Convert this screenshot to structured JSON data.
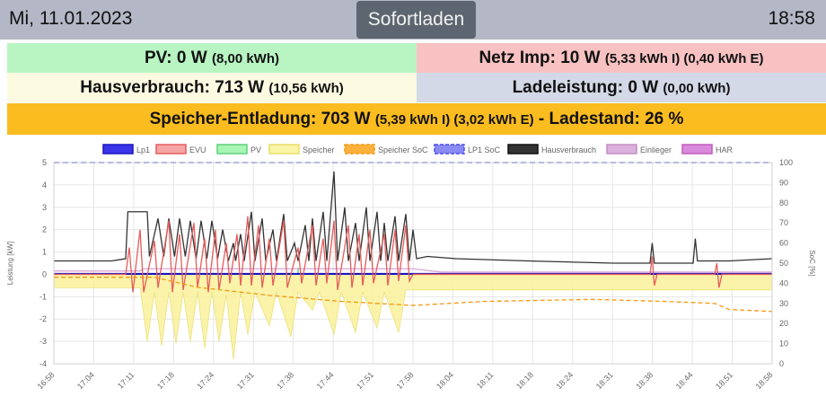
{
  "header": {
    "date": "Mi, 11.01.2023",
    "mode_button": "Sofortladen",
    "time": "18:58"
  },
  "status": {
    "pv_label": "PV: 0 W",
    "pv_sub": "(8,00 kWh)",
    "netz_label": "Netz Imp: 10 W",
    "netz_sub": "(5,33 kWh I) (0,40 kWh E)",
    "haus_label": "Hausverbrauch: 713 W",
    "haus_sub": "(10,56 kWh)",
    "lade_label": "Ladeleistung: 0 W",
    "lade_sub": "(0,00 kWh)",
    "speicher_label": "Speicher-Entladung: 703 W",
    "speicher_sub": "(5,39 kWh I) (3,02 kWh E)",
    "speicher_sep": "-",
    "soc_label": "Ladestand: 26 %"
  },
  "colors": {
    "pv_bg": "#b8f5c2",
    "netz_bg": "#f8c2c2",
    "haus_bg": "#fcfae0",
    "lade_bg": "#d3d9e6",
    "speicher_bg": "#fbbc1f",
    "header_bg": "#b3b7c6"
  },
  "chart_data": {
    "type": "line",
    "ylabel": "Leistung [kW]",
    "y2label": "SoC [%]",
    "ylim": [
      -4,
      5
    ],
    "y2lim": [
      0,
      100
    ],
    "yticks": [
      "5",
      "4",
      "3",
      "2",
      "1",
      "0",
      "-1",
      "-2",
      "-3",
      "-4"
    ],
    "y2ticks": [
      "100",
      "90",
      "80",
      "70",
      "60",
      "50",
      "40",
      "30",
      "20",
      "10",
      "0"
    ],
    "x": [
      "16:58",
      "17:04",
      "17:11",
      "17:18",
      "17:24",
      "17:31",
      "17:38",
      "17:44",
      "17:51",
      "17:58",
      "18:04",
      "18:11",
      "18:18",
      "18:24",
      "18:31",
      "18:38",
      "18:44",
      "18:51",
      "18:58"
    ],
    "grid": true,
    "legend_position": "top",
    "legend": [
      {
        "name": "Lp1",
        "color": "#3a35e8",
        "border": "#1a16c0",
        "dashed": false
      },
      {
        "name": "EVU",
        "color": "#f5a5a5",
        "border": "#e65c5c",
        "dashed": false
      },
      {
        "name": "PV",
        "color": "#a8f5b5",
        "border": "#5fd27a",
        "dashed": false
      },
      {
        "name": "Speicher",
        "color": "#fbf3a5",
        "border": "#e8de6a",
        "dashed": false
      },
      {
        "name": "Speicher SoC",
        "color": "#fbb13c",
        "border": "#f59a16",
        "dashed": true
      },
      {
        "name": "LP1 SoC",
        "color": "#8a8af5",
        "border": "#4a4ae8",
        "dashed": true
      },
      {
        "name": "Hausverbrauch",
        "color": "#333333",
        "border": "#111111",
        "dashed": false
      },
      {
        "name": "Einlieger",
        "color": "#dcb0dc",
        "border": "#c58ec5",
        "dashed": false
      },
      {
        "name": "HAR",
        "color": "#d98ad9",
        "border": "#c05cc0",
        "dashed": false
      }
    ],
    "series": [
      {
        "name": "Hausverbrauch",
        "color": "#333333",
        "points": [
          [
            0,
            0.6
          ],
          [
            8,
            0.6
          ],
          [
            10,
            0.7
          ],
          [
            10.3,
            2.8
          ],
          [
            13,
            2.8
          ],
          [
            13.3,
            0.8
          ],
          [
            14.5,
            2.5
          ],
          [
            15.3,
            0.8
          ],
          [
            16,
            2.5
          ],
          [
            16.8,
            0.8
          ],
          [
            17.5,
            2.5
          ],
          [
            18.3,
            0.8
          ],
          [
            19,
            2.4
          ],
          [
            19.8,
            0.7
          ],
          [
            20.5,
            2.4
          ],
          [
            21.3,
            0.7
          ],
          [
            22,
            2.4
          ],
          [
            22.8,
            0.7
          ],
          [
            23.5,
            2.0
          ],
          [
            24.3,
            0.6
          ],
          [
            25,
            1.4
          ],
          [
            25.3,
            0.6
          ],
          [
            26,
            1.8
          ],
          [
            26.5,
            0.6
          ],
          [
            27.5,
            2.8
          ],
          [
            28,
            0.6
          ],
          [
            29,
            2.5
          ],
          [
            29.5,
            0.6
          ],
          [
            30.5,
            2.0
          ],
          [
            31,
            0.6
          ],
          [
            32,
            2.7
          ],
          [
            32.5,
            0.6
          ],
          [
            33.5,
            1.4
          ],
          [
            34,
            0.6
          ],
          [
            35,
            2.2
          ],
          [
            35.5,
            0.6
          ],
          [
            36,
            2.5
          ],
          [
            36.5,
            0.6
          ],
          [
            37.5,
            2.8
          ],
          [
            38,
            0.6
          ],
          [
            39,
            4.6
          ],
          [
            39.5,
            0.6
          ],
          [
            40.5,
            3.0
          ],
          [
            41,
            0.6
          ],
          [
            42,
            2.3
          ],
          [
            42.5,
            0.6
          ],
          [
            43.5,
            3.0
          ],
          [
            44,
            0.6
          ],
          [
            45,
            2.8
          ],
          [
            45.5,
            0.6
          ],
          [
            46,
            2.3
          ],
          [
            46.5,
            0.6
          ],
          [
            47.5,
            2.6
          ],
          [
            48,
            0.6
          ],
          [
            49,
            2.7
          ],
          [
            49.5,
            0.6
          ],
          [
            50,
            2.0
          ],
          [
            50.5,
            0.7
          ],
          [
            52,
            0.8
          ],
          [
            56,
            0.7
          ],
          [
            66,
            0.6
          ],
          [
            78,
            0.5
          ],
          [
            83,
            0.5
          ],
          [
            83.3,
            1.4
          ],
          [
            83.6,
            0.5
          ],
          [
            89,
            0.5
          ],
          [
            89.3,
            1.6
          ],
          [
            89.6,
            0.6
          ],
          [
            94,
            0.6
          ],
          [
            97,
            0.65
          ],
          [
            100,
            0.7
          ]
        ]
      },
      {
        "name": "Einlieger",
        "color": "#d9a6d9",
        "points": [
          [
            0,
            0.15
          ],
          [
            12,
            0.15
          ],
          [
            12.5,
            0.25
          ],
          [
            50,
            0.25
          ],
          [
            54,
            0.1
          ],
          [
            100,
            0.1
          ]
        ]
      },
      {
        "name": "Lp1",
        "color": "#1a16c0",
        "points": [
          [
            0,
            0.02
          ],
          [
            100,
            0.02
          ]
        ]
      },
      {
        "name": "EVU",
        "color": "#e65c5c",
        "points": [
          [
            0,
            0
          ],
          [
            10,
            0
          ],
          [
            10.5,
            1.2
          ],
          [
            11,
            -0.8
          ],
          [
            12,
            2.0
          ],
          [
            12.5,
            -0.8
          ],
          [
            14,
            1.5
          ],
          [
            14.5,
            -0.6
          ],
          [
            16,
            2.4
          ],
          [
            16.5,
            -0.8
          ],
          [
            17.5,
            1.8
          ],
          [
            18,
            -0.7
          ],
          [
            19.5,
            2.3
          ],
          [
            20,
            -0.6
          ],
          [
            21,
            1.6
          ],
          [
            21.5,
            -0.8
          ],
          [
            22.5,
            2.0
          ],
          [
            23,
            -0.7
          ],
          [
            24,
            1.4
          ],
          [
            24.5,
            -0.4
          ],
          [
            25.5,
            1.8
          ],
          [
            26,
            -0.5
          ],
          [
            27,
            2.6
          ],
          [
            27.5,
            -0.5
          ],
          [
            28.5,
            2.2
          ],
          [
            29,
            -0.6
          ],
          [
            30,
            1.6
          ],
          [
            30.5,
            -0.5
          ],
          [
            32,
            2.4
          ],
          [
            32.5,
            -0.6
          ],
          [
            34,
            1.2
          ],
          [
            34.5,
            -0.4
          ],
          [
            36,
            2.2
          ],
          [
            36.5,
            -0.5
          ],
          [
            37.5,
            1.6
          ],
          [
            38,
            -0.4
          ],
          [
            39,
            2.4
          ],
          [
            39.5,
            -0.7
          ],
          [
            41,
            2.2
          ],
          [
            41.5,
            -0.6
          ],
          [
            42.5,
            1.8
          ],
          [
            43,
            -0.5
          ],
          [
            44,
            2.0
          ],
          [
            44.5,
            -0.4
          ],
          [
            46,
            1.8
          ],
          [
            46.5,
            -0.5
          ],
          [
            47.5,
            2.0
          ],
          [
            48,
            -0.3
          ],
          [
            49,
            2.2
          ],
          [
            49.5,
            -0.3
          ],
          [
            50,
            0
          ],
          [
            83,
            0
          ],
          [
            83.3,
            0.8
          ],
          [
            83.6,
            -0.5
          ],
          [
            84,
            0
          ],
          [
            92,
            0
          ],
          [
            92.3,
            0.5
          ],
          [
            92.6,
            -0.6
          ],
          [
            93,
            0
          ],
          [
            100,
            0
          ]
        ]
      },
      {
        "name": "Speicher SoC",
        "color": "#f59a16",
        "y_axis": "right",
        "dashed": true,
        "points": [
          [
            0,
            43
          ],
          [
            10,
            43
          ],
          [
            14,
            43
          ],
          [
            20,
            38
          ],
          [
            30,
            34
          ],
          [
            40,
            31
          ],
          [
            50,
            29
          ],
          [
            60,
            31
          ],
          [
            75,
            32
          ],
          [
            85,
            31
          ],
          [
            92,
            30
          ],
          [
            94,
            27
          ],
          [
            100,
            26
          ]
        ]
      }
    ],
    "speicher_area": {
      "name": "Speicher",
      "color": "#faf2a0",
      "points": [
        [
          0,
          -0.6
        ],
        [
          12,
          -0.6
        ],
        [
          13,
          -3.0
        ],
        [
          14,
          -0.8
        ],
        [
          15,
          -3.2
        ],
        [
          16,
          -0.8
        ],
        [
          17,
          -3.1
        ],
        [
          18,
          -0.8
        ],
        [
          19,
          -3.0
        ],
        [
          20,
          -0.8
        ],
        [
          21,
          -3.3
        ],
        [
          22,
          -0.8
        ],
        [
          23,
          -3.0
        ],
        [
          24,
          -0.9
        ],
        [
          25,
          -3.8
        ],
        [
          26,
          -0.8
        ],
        [
          27,
          -2.7
        ],
        [
          28,
          -0.8
        ],
        [
          30,
          -2.3
        ],
        [
          31,
          -0.8
        ],
        [
          33,
          -2.8
        ],
        [
          34,
          -0.8
        ],
        [
          36,
          -1.6
        ],
        [
          37,
          -0.8
        ],
        [
          39,
          -2.7
        ],
        [
          40,
          -0.8
        ],
        [
          42,
          -2.6
        ],
        [
          43,
          -0.8
        ],
        [
          45,
          -2.4
        ],
        [
          46,
          -0.8
        ],
        [
          48,
          -2.6
        ],
        [
          49,
          -0.7
        ],
        [
          52,
          -0.7
        ],
        [
          78,
          -0.7
        ],
        [
          88,
          -0.7
        ],
        [
          100,
          -0.7
        ]
      ]
    }
  }
}
